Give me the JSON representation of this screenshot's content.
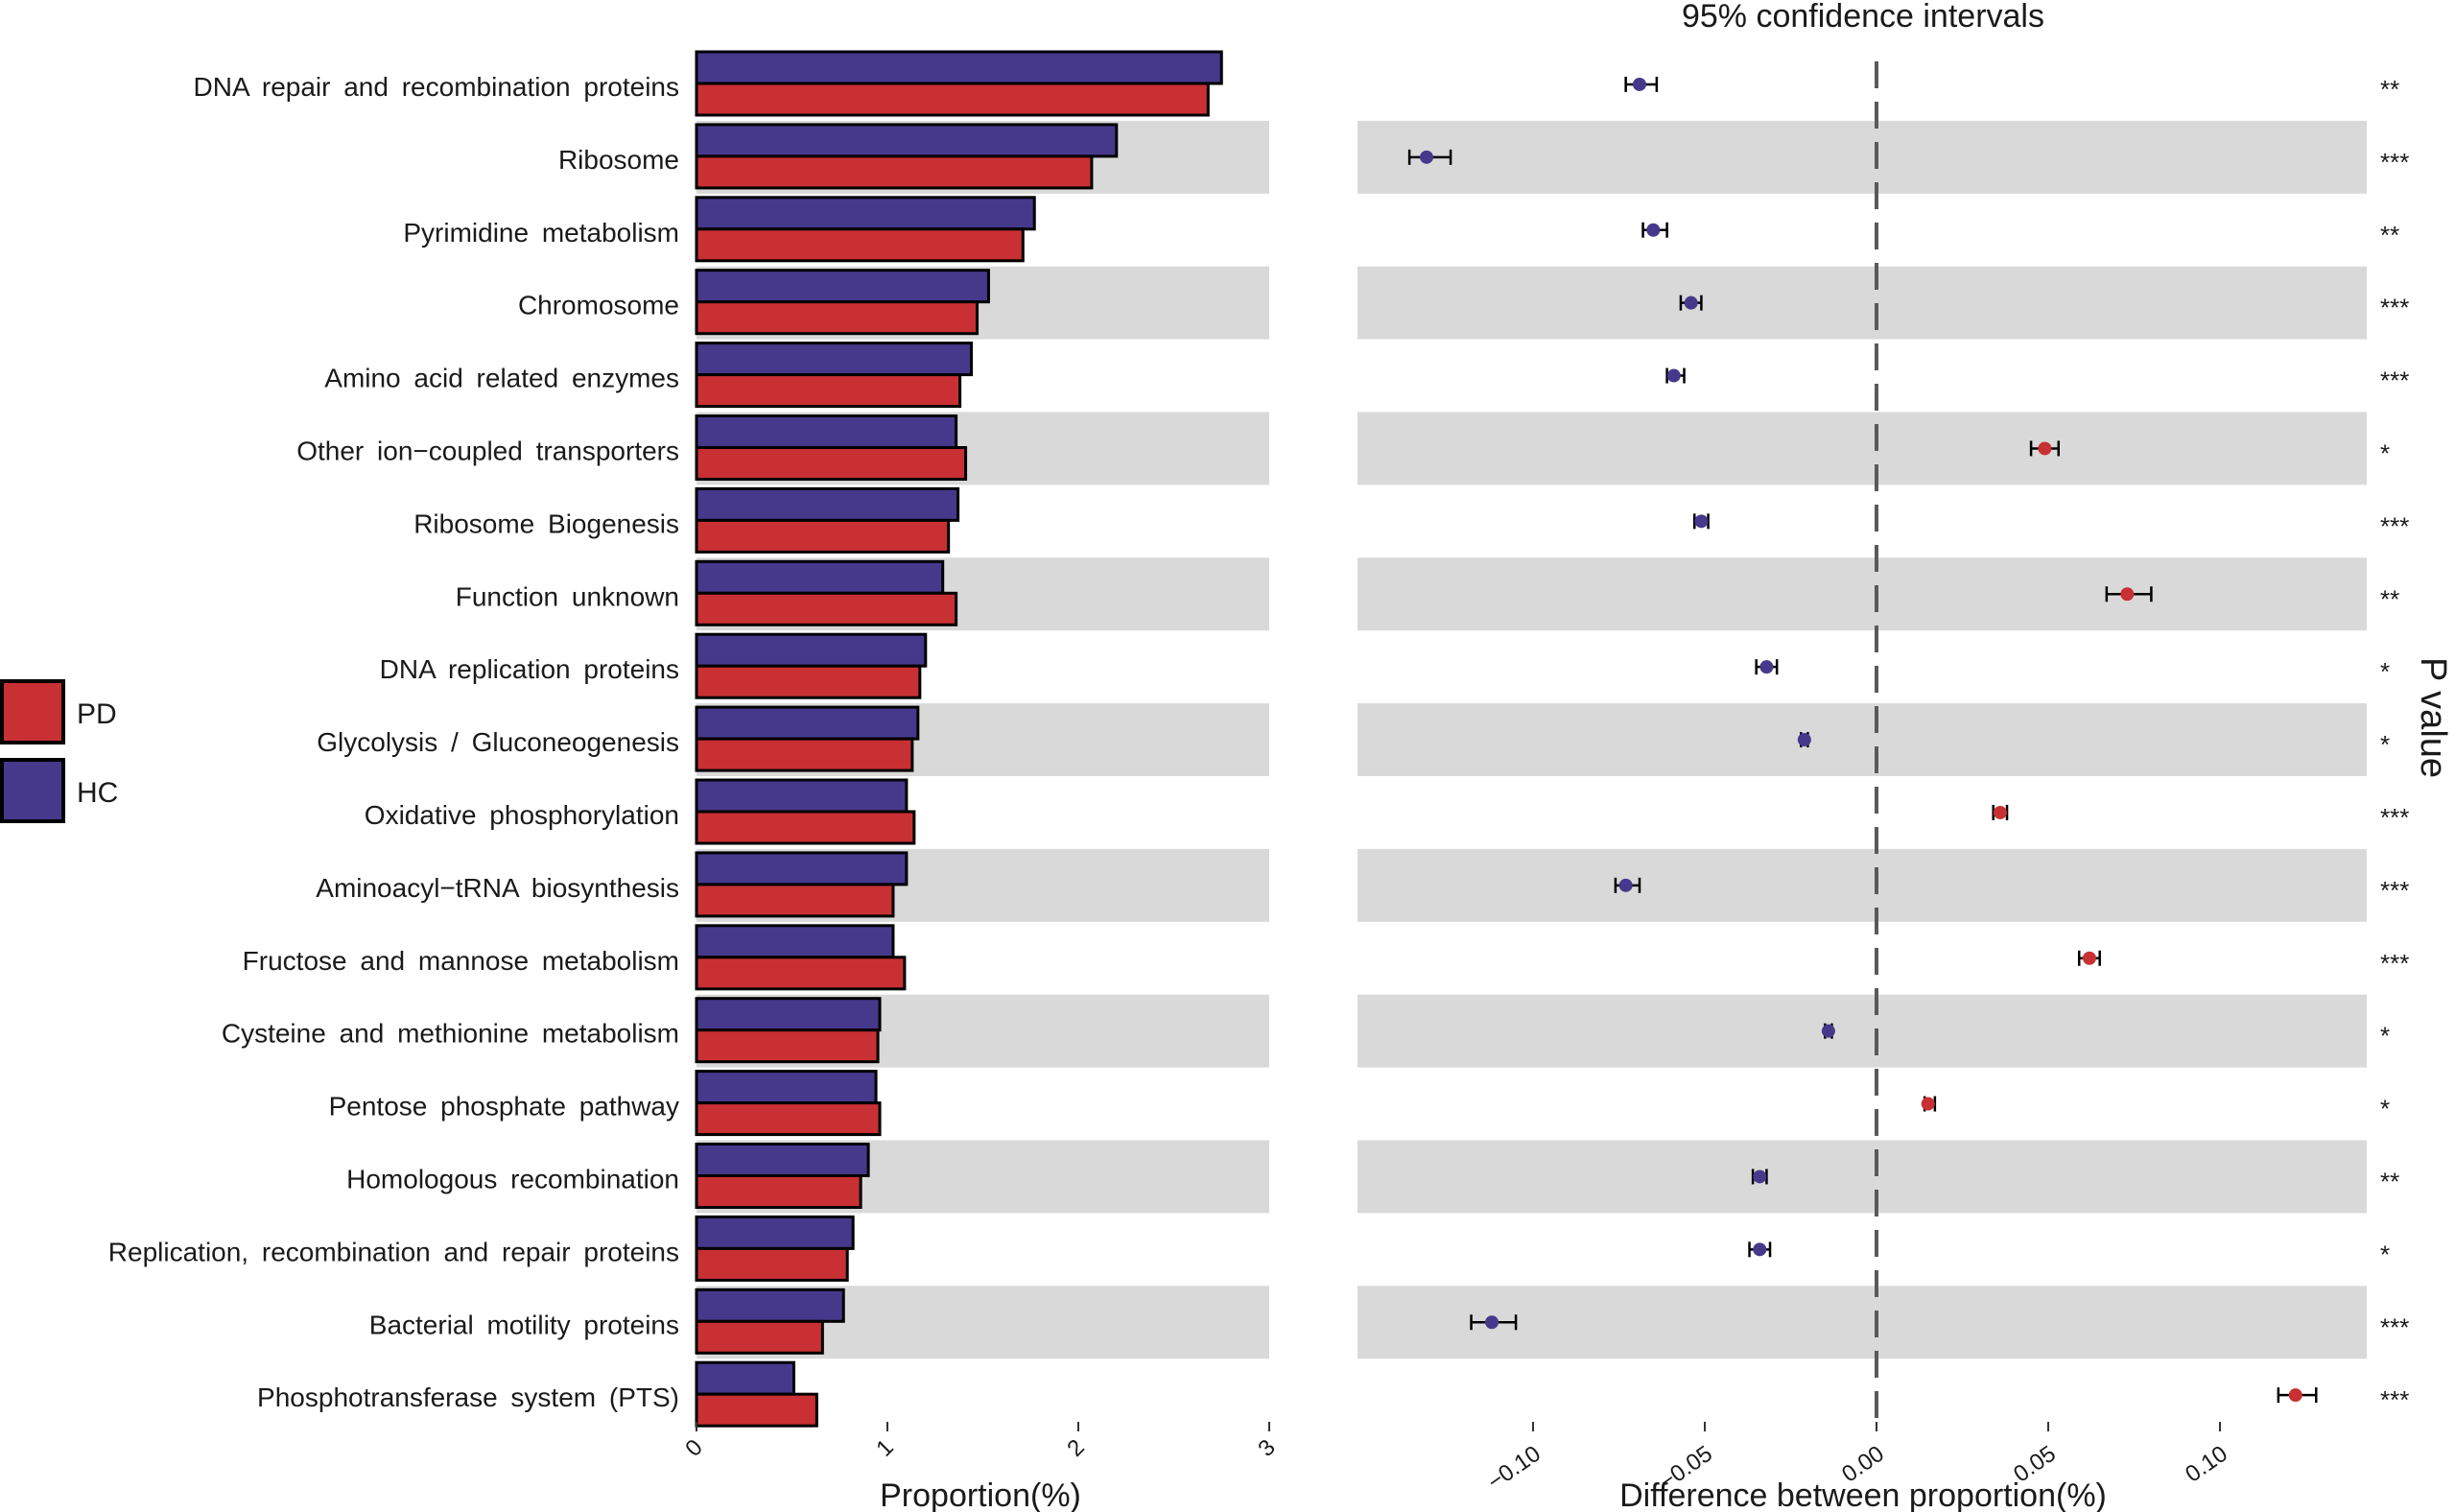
{
  "chart_data": [
    {
      "type": "bar",
      "orientation": "horizontal",
      "xlabel": "Proportion(%)",
      "xlim": [
        0,
        3
      ],
      "xticks": [
        0,
        1,
        2,
        3
      ],
      "categories": [
        "DNA repair and recombination proteins",
        "Ribosome",
        "Pyrimidine metabolism",
        "Chromosome",
        "Amino acid related enzymes",
        "Other ion−coupled transporters",
        "Ribosome Biogenesis",
        "Function unknown",
        "DNA replication proteins",
        "Glycolysis / Gluconeogenesis",
        "Oxidative phosphorylation",
        "Aminoacyl−tRNA biosynthesis",
        "Fructose and mannose metabolism",
        "Cysteine and methionine metabolism",
        "Pentose phosphate pathway",
        "Homologous recombination",
        "Replication, recombination and repair proteins",
        "Bacterial motility proteins",
        "Phosphotransferase system (PTS)"
      ],
      "series": [
        {
          "name": "HC",
          "color": "#46398c",
          "values": [
            2.75,
            2.2,
            1.77,
            1.53,
            1.44,
            1.36,
            1.37,
            1.29,
            1.2,
            1.16,
            1.1,
            1.1,
            1.03,
            0.96,
            0.94,
            0.9,
            0.82,
            0.77,
            0.51
          ]
        },
        {
          "name": "PD",
          "color": "#c93033",
          "values": [
            2.68,
            2.07,
            1.71,
            1.47,
            1.38,
            1.41,
            1.32,
            1.36,
            1.17,
            1.13,
            1.14,
            1.03,
            1.09,
            0.95,
            0.96,
            0.86,
            0.79,
            0.66,
            0.63
          ]
        }
      ],
      "legend": {
        "items": [
          {
            "name": "PD",
            "color": "#c93033"
          },
          {
            "name": "HC",
            "color": "#46398c"
          }
        ],
        "placement": "left"
      }
    },
    {
      "type": "scatter",
      "title": "95% confidence intervals",
      "xlabel": "Difference between proportion(%)",
      "xlim": [
        -0.15,
        0.145
      ],
      "xticks": [
        -0.1,
        -0.05,
        0.0,
        0.05,
        0.1
      ],
      "xtick_labels": [
        "−0.10",
        "−0.05",
        "0.00",
        "0.05",
        "0.10"
      ],
      "reference_line": 0.0,
      "estimates": [
        -0.069,
        -0.131,
        -0.065,
        -0.054,
        -0.059,
        0.049,
        -0.051,
        0.073,
        -0.032,
        -0.021,
        0.036,
        -0.073,
        0.062,
        -0.014,
        0.015,
        -0.034,
        -0.034,
        -0.112,
        0.122
      ],
      "ci_lower": [
        -0.073,
        -0.136,
        -0.068,
        -0.057,
        -0.061,
        0.045,
        -0.053,
        0.067,
        -0.035,
        -0.022,
        0.034,
        -0.076,
        0.059,
        -0.015,
        0.014,
        -0.036,
        -0.037,
        -0.118,
        0.117
      ],
      "ci_upper": [
        -0.064,
        -0.124,
        -0.061,
        -0.051,
        -0.056,
        0.053,
        -0.049,
        0.08,
        -0.029,
        -0.02,
        0.038,
        -0.069,
        0.065,
        -0.013,
        0.017,
        -0.032,
        -0.031,
        -0.105,
        0.128
      ],
      "favors": [
        "HC",
        "HC",
        "HC",
        "HC",
        "HC",
        "PD",
        "HC",
        "PD",
        "HC",
        "HC",
        "PD",
        "HC",
        "PD",
        "HC",
        "PD",
        "HC",
        "HC",
        "HC",
        "PD"
      ],
      "p_value_label": "P value",
      "significance": [
        "**",
        "***",
        "**",
        "***",
        "***",
        "*",
        "***",
        "**",
        "*",
        "*",
        "***",
        "***",
        "***",
        "*",
        "*",
        "**",
        "*",
        "***",
        "***"
      ]
    }
  ]
}
